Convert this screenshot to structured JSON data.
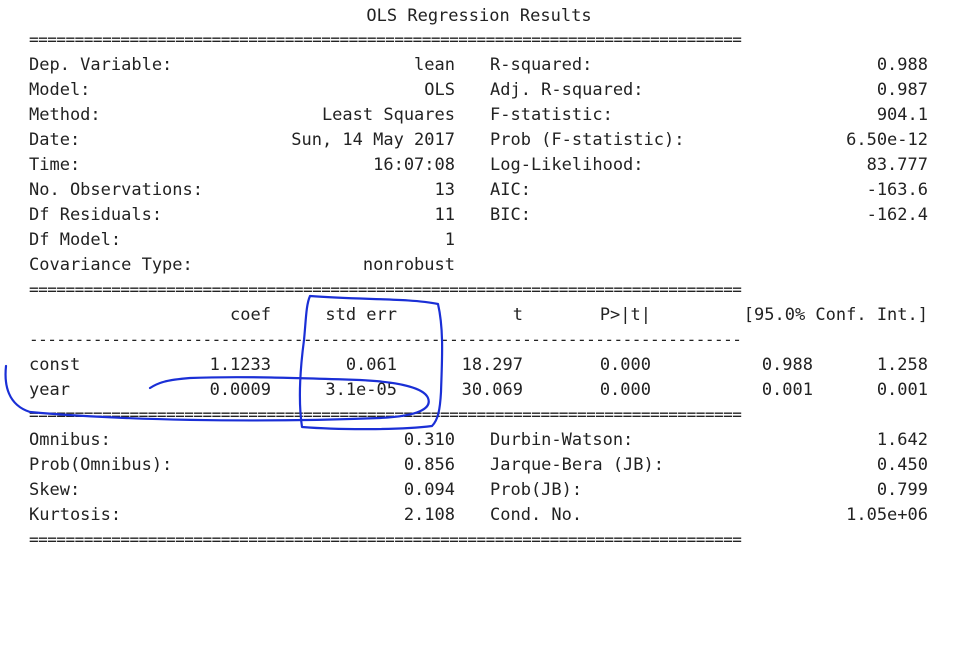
{
  "title": "OLS Regression Results",
  "rules": {
    "double": "==============================================================================",
    "single": "------------------------------------------------------------------------------"
  },
  "summary": {
    "left": [
      {
        "label": "Dep. Variable:",
        "value": "lean"
      },
      {
        "label": "Model:",
        "value": "OLS"
      },
      {
        "label": "Method:",
        "value": "Least Squares"
      },
      {
        "label": "Date:",
        "value": "Sun, 14 May 2017"
      },
      {
        "label": "Time:",
        "value": "16:07:08"
      },
      {
        "label": "No. Observations:",
        "value": "13"
      },
      {
        "label": "Df Residuals:",
        "value": "11"
      },
      {
        "label": "Df Model:",
        "value": "1"
      },
      {
        "label": "Covariance Type:",
        "value": "nonrobust"
      }
    ],
    "right": [
      {
        "label": "R-squared:",
        "value": "0.988"
      },
      {
        "label": "Adj. R-squared:",
        "value": "0.987"
      },
      {
        "label": "F-statistic:",
        "value": "904.1"
      },
      {
        "label": "Prob (F-statistic):",
        "value": "6.50e-12"
      },
      {
        "label": "Log-Likelihood:",
        "value": "83.777"
      },
      {
        "label": "AIC:",
        "value": "-163.6"
      },
      {
        "label": "BIC:",
        "value": "-162.4"
      }
    ]
  },
  "coefficients": {
    "headers": [
      "coef",
      "std err",
      "t",
      "P>|t|",
      "[95.0% Conf. Int.]"
    ],
    "rows": [
      {
        "name": "const",
        "coef": "1.1233",
        "std_err": "0.061",
        "t": "18.297",
        "p": "0.000",
        "ci_low": "0.988",
        "ci_high": "1.258"
      },
      {
        "name": "year",
        "coef": "0.0009",
        "std_err": "3.1e-05",
        "t": "30.069",
        "p": "0.000",
        "ci_low": "0.001",
        "ci_high": "0.001"
      }
    ]
  },
  "diagnostics": {
    "left": [
      {
        "label": "Omnibus:",
        "value": "0.310"
      },
      {
        "label": "Prob(Omnibus):",
        "value": "0.856"
      },
      {
        "label": "Skew:",
        "value": "0.094"
      },
      {
        "label": "Kurtosis:",
        "value": "2.108"
      }
    ],
    "right": [
      {
        "label": "Durbin-Watson:",
        "value": "1.642"
      },
      {
        "label": "Jarque-Bera (JB):",
        "value": "0.450"
      },
      {
        "label": "Prob(JB):",
        "value": "0.799"
      },
      {
        "label": "Cond. No.",
        "value": "1.05e+06"
      }
    ]
  },
  "colors": {
    "text": "#222222",
    "annotation": "#1a2fd6",
    "background": "#ffffff"
  }
}
